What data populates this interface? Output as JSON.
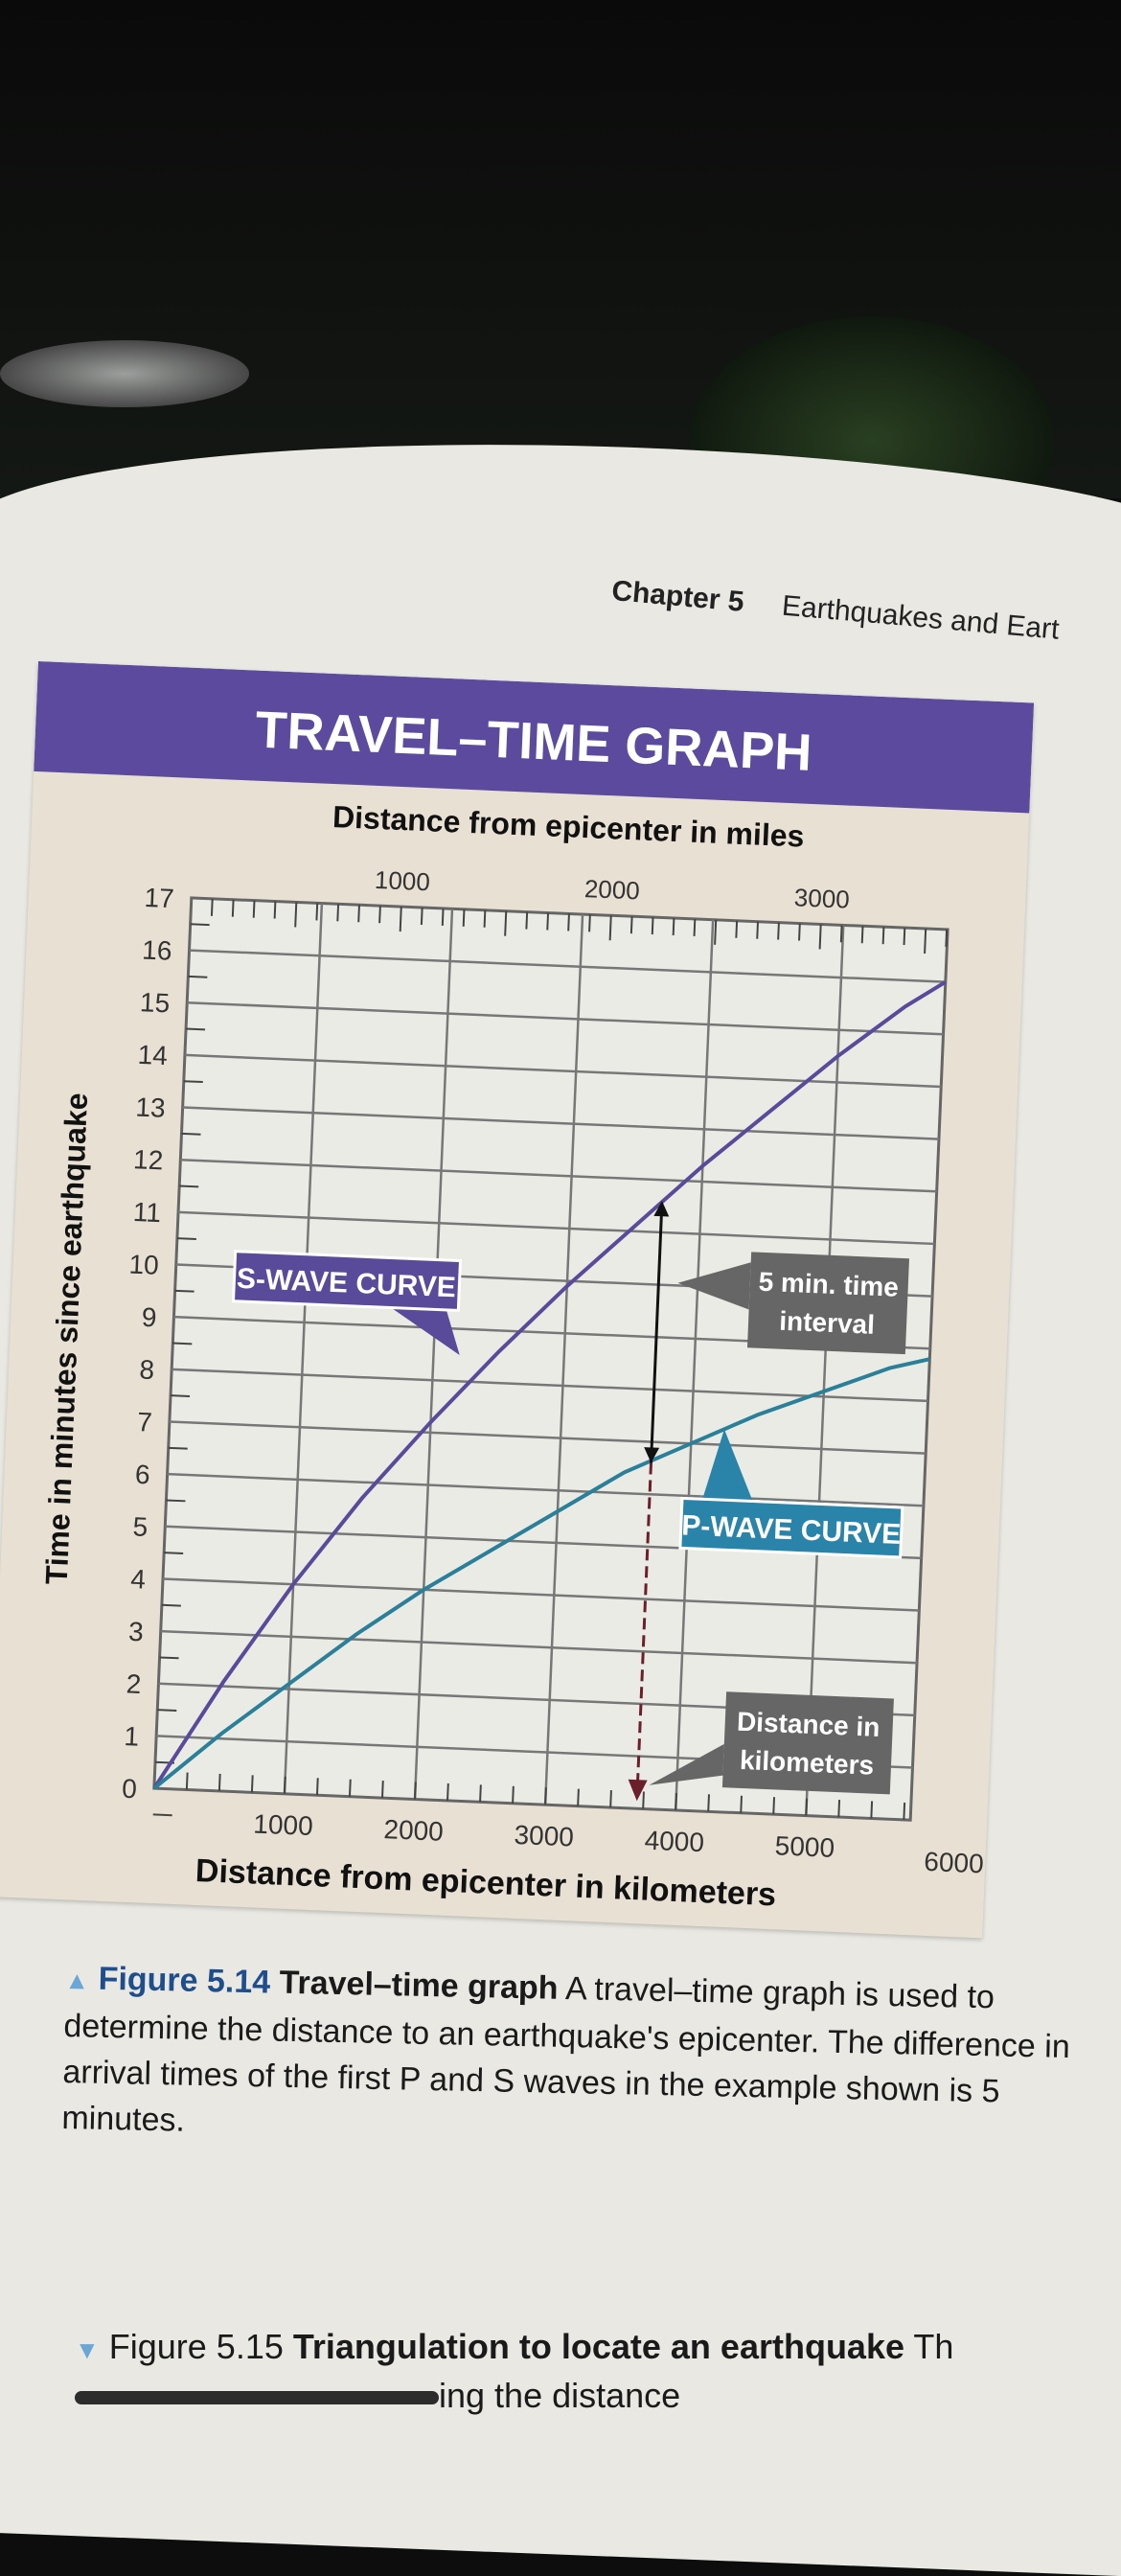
{
  "header": {
    "chapter": "Chapter 5",
    "chapter_title": "Earthquakes and Eart"
  },
  "chart_data": {
    "type": "line",
    "title": "TRAVEL–TIME GRAPH",
    "xlabel": "Distance from epicenter in kilometers",
    "x2label": "Distance from epicenter in miles",
    "ylabel": "Time in minutes since earthquake",
    "xlim": [
      0,
      5800
    ],
    "ylim": [
      0,
      17
    ],
    "xticks": [
      1000,
      2000,
      3000,
      4000,
      5000,
      6000
    ],
    "x2ticks": [
      1000,
      2000,
      3000
    ],
    "yticks": [
      0,
      1,
      2,
      3,
      4,
      5,
      6,
      7,
      8,
      9,
      10,
      11,
      12,
      13,
      14,
      15,
      16,
      17
    ],
    "grid": true,
    "series": [
      {
        "name": "S-WAVE CURVE",
        "color": "#5a4a9a",
        "x": [
          0,
          500,
          1000,
          1500,
          2000,
          2500,
          3000,
          3500,
          4000,
          4500,
          5000,
          5500,
          5800
        ],
        "y": [
          0,
          2.1,
          4.0,
          5.7,
          7.2,
          8.6,
          9.9,
          11.1,
          12.3,
          13.4,
          14.5,
          15.5,
          16.0
        ]
      },
      {
        "name": "P-WAVE CURVE",
        "color": "#2a7f99",
        "x": [
          0,
          500,
          1000,
          1500,
          2000,
          2500,
          3000,
          3500,
          4000,
          4500,
          5000,
          5500,
          5800
        ],
        "y": [
          0,
          1.1,
          2.1,
          3.1,
          4.0,
          4.8,
          5.6,
          6.4,
          7.0,
          7.6,
          8.1,
          8.6,
          8.8
        ]
      }
    ],
    "annotations": {
      "interval_label": "5 min. time interval",
      "distance_label": "Distance in kilometers",
      "example_distance_km": 3700,
      "interval_from_min": 6.6,
      "interval_to_min": 11.6
    },
    "title_bar_color": "#5b4a9e",
    "p_label_color": "#2a84aa",
    "callout_color": "#666666"
  },
  "caption": {
    "figure_number": "Figure 5.14",
    "figure_title": "Travel–time graph",
    "text": "A travel–time graph is used to determine the distance to an earthquake's epicenter. The difference in arrival times of the first P and S waves in the example shown is 5 minutes."
  },
  "next_caption": {
    "figure_number": "Figure 5.15",
    "figure_title": "Triangulation to locate an earthquake",
    "text_start": "Th",
    "text_end": "ing the distance"
  }
}
